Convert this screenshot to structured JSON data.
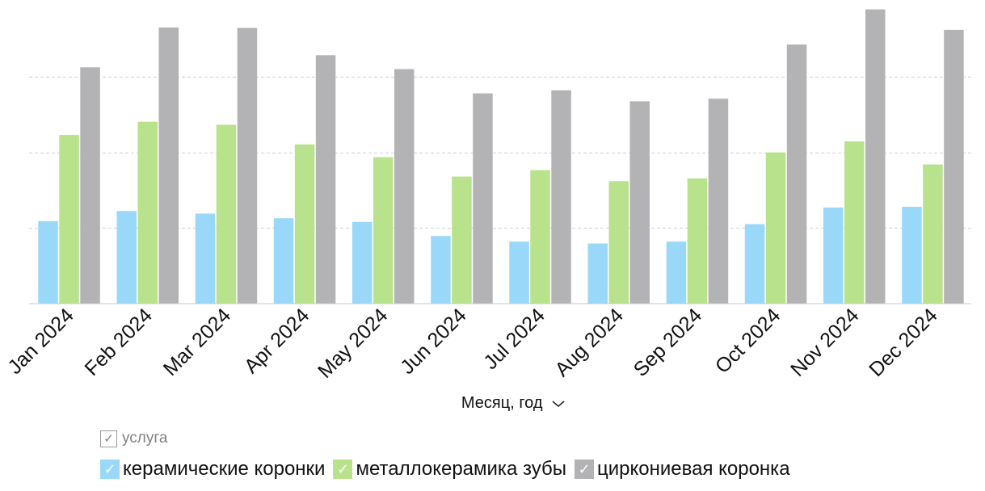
{
  "chart_data": {
    "type": "bar",
    "title": "",
    "xlabel": "Месяц, год",
    "ylabel": "",
    "ylim": [
      0,
      3950
    ],
    "grid": true,
    "legend_position": "bottom",
    "legend_title": "услуга",
    "categories": [
      "Jan 2024",
      "Feb 2024",
      "Mar 2024",
      "Apr 2024",
      "May 2024",
      "Jun 2024",
      "Jul 2024",
      "Aug 2024",
      "Sep 2024",
      "Oct 2024",
      "Nov 2024",
      "Dec 2024"
    ],
    "series": [
      {
        "name": "керамические коронки",
        "color": "#99d8f8",
        "values": [
          1090,
          1225,
          1190,
          1130,
          1080,
          895,
          820,
          795,
          820,
          1050,
          1270,
          1280
        ]
      },
      {
        "name": "металлокерамика зубы",
        "color": "#b9e28c",
        "values": [
          2230,
          2405,
          2365,
          2105,
          1935,
          1680,
          1765,
          1620,
          1655,
          2000,
          2145,
          1840
        ]
      },
      {
        "name": "циркониевая коронка",
        "color": "#b3b3b5",
        "values": [
          3125,
          3650,
          3645,
          3285,
          3100,
          2780,
          2820,
          2675,
          2710,
          3425,
          3890,
          3620
        ]
      }
    ]
  },
  "icons": {
    "legend_title_check": "check-icon",
    "swatch_check": "check-icon",
    "axis_menu": "chevron-down-icon"
  },
  "ui": {
    "check_glyph": "✓"
  }
}
